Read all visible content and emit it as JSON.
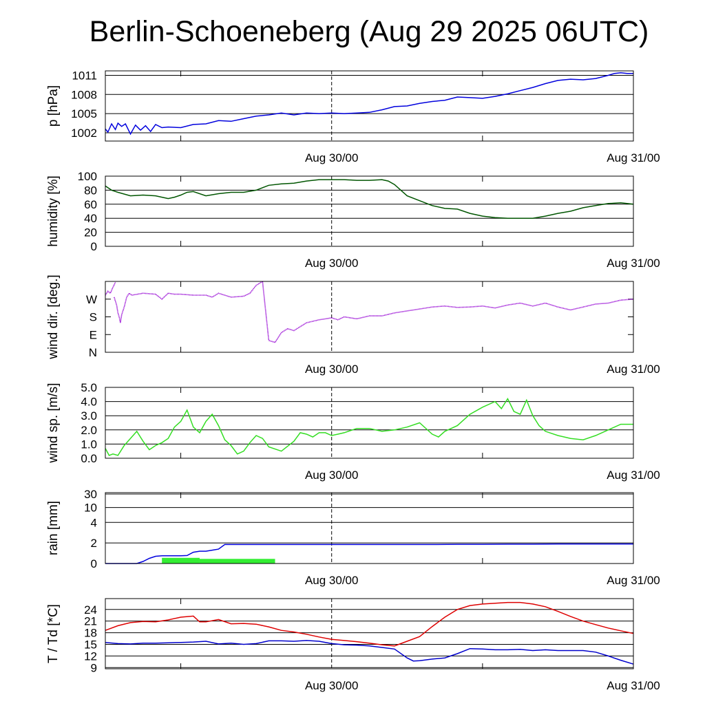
{
  "title": "Berlin-Schoeneberg (Aug 29 2025 06UTC)",
  "x_axis": {
    "ticks": [
      {
        "label": "Aug 30/00",
        "hour": 18
      },
      {
        "label": "Aug 31/00",
        "hour": 42
      }
    ],
    "start": "Aug 29 06UTC",
    "range_hours": [
      0,
      42
    ],
    "minor_tick_hours": [
      6,
      30
    ],
    "marker_hour": 18
  },
  "colors": {
    "pressure": "#0000dd",
    "humidity": "#005500",
    "wind_dir": "#9400d3",
    "wind_speed": "#33dd22",
    "rain_total": "#0000dd",
    "rain_bars": "#33ee33",
    "temperature": "#dd0000",
    "dewpoint": "#0000cc"
  },
  "chart_data": [
    {
      "id": "pressure",
      "type": "line",
      "ylabel": "p [hPa]",
      "ylim": [
        1000.7,
        1011.7
      ],
      "yticks": [
        1002,
        1005,
        1008,
        1011
      ],
      "ytick_labels": [
        "1002",
        "1005",
        "1008",
        "1011"
      ],
      "grid": true,
      "series": [
        {
          "color_key": "pressure",
          "x": [
            0,
            0.2,
            0.5,
            0.8,
            1.0,
            1.3,
            1.6,
            2.0,
            2.4,
            2.8,
            3.2,
            3.6,
            4.0,
            4.5,
            5,
            6,
            7,
            8,
            9,
            10,
            11,
            12,
            13,
            14,
            15,
            16,
            17,
            18,
            19,
            20,
            21,
            22,
            23,
            24,
            25,
            26,
            27,
            28,
            29,
            30,
            31,
            32,
            33,
            34,
            35,
            36,
            37,
            38,
            39,
            40,
            40.5,
            41,
            41.5,
            42
          ],
          "y": [
            1002.6,
            1002.1,
            1003.4,
            1002.5,
            1003.5,
            1003.0,
            1003.4,
            1001.8,
            1003.2,
            1002.4,
            1003.1,
            1002.2,
            1003.3,
            1002.8,
            1002.9,
            1002.8,
            1003.3,
            1003.4,
            1003.9,
            1003.8,
            1004.2,
            1004.6,
            1004.8,
            1005.1,
            1004.8,
            1005.1,
            1005.0,
            1005.1,
            1005.0,
            1005.1,
            1005.2,
            1005.6,
            1006.1,
            1006.2,
            1006.6,
            1006.9,
            1007.1,
            1007.6,
            1007.5,
            1007.4,
            1007.7,
            1008.1,
            1008.6,
            1009.1,
            1009.7,
            1010.2,
            1010.4,
            1010.3,
            1010.5,
            1011.0,
            1011.3,
            1011.4,
            1011.3,
            1011.3
          ]
        }
      ]
    },
    {
      "id": "humidity",
      "type": "line",
      "ylabel": "humidity [%]",
      "ylim": [
        0,
        100
      ],
      "yticks": [
        0,
        20,
        40,
        60,
        80,
        100
      ],
      "ytick_labels": [
        "0",
        "20",
        "40",
        "60",
        "80",
        "100"
      ],
      "grid": true,
      "series": [
        {
          "color_key": "humidity",
          "x": [
            0,
            0.5,
            1,
            2,
            3,
            4,
            4.5,
            5,
            5.5,
            6,
            6.5,
            7,
            8,
            9,
            10,
            11,
            12,
            13,
            14,
            15,
            16,
            17,
            18,
            19,
            20,
            21,
            22,
            22.5,
            23,
            24,
            25,
            26,
            27,
            28,
            29,
            30,
            31,
            32,
            33,
            34,
            35,
            36,
            37,
            38,
            39,
            40,
            41,
            42
          ],
          "y": [
            86,
            80,
            77,
            72,
            73,
            72,
            70,
            68,
            70,
            73,
            77,
            78,
            72,
            75,
            77,
            77,
            80,
            87,
            89,
            90,
            93,
            95,
            95,
            95,
            94,
            94,
            95,
            93,
            88,
            72,
            65,
            58,
            54,
            53,
            47,
            43,
            41,
            40,
            40,
            40,
            43,
            47,
            50,
            55,
            58,
            61,
            62,
            60
          ]
        }
      ]
    },
    {
      "id": "wind_dir",
      "type": "scatter",
      "ylabel": "wind dir. [deg.]",
      "ylim": [
        0,
        360
      ],
      "yticks": [
        0,
        90,
        180,
        270
      ],
      "ytick_labels": [
        "N",
        "E",
        "S",
        "W"
      ],
      "grid": false,
      "series": [
        {
          "color_key": "wind_dir",
          "segments": [
            {
              "x": [
                0,
                0.2,
                0.4,
                0.6,
                0.8
              ],
              "y": [
                290,
                310,
                300,
                330,
                355
              ]
            },
            {
              "x": [
                0.7,
                0.8,
                0.9,
                1.0,
                1.1,
                1.2,
                1.3,
                1.5,
                1.7,
                1.9,
                2.1
              ],
              "y": [
                280,
                260,
                240,
                200,
                180,
                150,
                190,
                230,
                280,
                300,
                290
              ]
            },
            {
              "x": [
                2.1,
                3,
                4,
                4.5,
                5,
                5.5,
                6,
                7,
                8,
                8.5,
                9,
                10,
                11,
                11.5,
                12,
                12.5,
                13,
                13.5,
                14,
                14.5,
                15,
                15.5,
                16,
                17,
                17.5,
                18,
                18.5,
                19,
                20,
                21,
                22,
                23,
                24,
                25,
                26,
                27,
                28,
                29,
                30,
                31,
                32,
                33,
                34,
                35,
                36,
                37,
                38,
                39,
                40,
                41,
                42
              ],
              "y": [
                290,
                300,
                295,
                270,
                300,
                295,
                295,
                290,
                290,
                280,
                300,
                280,
                285,
                300,
                340,
                360,
                60,
                50,
                100,
                120,
                110,
                130,
                150,
                165,
                170,
                175,
                165,
                180,
                170,
                185,
                185,
                200,
                210,
                220,
                230,
                235,
                228,
                230,
                235,
                225,
                240,
                250,
                235,
                250,
                230,
                215,
                230,
                245,
                250,
                265,
                270
              ]
            }
          ],
          "approx_points": "line approximated by connected segments; wraps at 360 deg"
        }
      ]
    },
    {
      "id": "wind_speed",
      "type": "line",
      "ylabel": "wind sp. [m/s]",
      "ylim": [
        0,
        5.0
      ],
      "yticks": [
        0,
        1.0,
        2.0,
        3.0,
        4.0,
        5.0
      ],
      "ytick_labels": [
        "0.0",
        "1.0",
        "2.0",
        "3.0",
        "4.0",
        "5.0"
      ],
      "grid": true,
      "series": [
        {
          "color_key": "wind_speed",
          "x": [
            0,
            0.3,
            0.6,
            1,
            1.5,
            2,
            2.5,
            3,
            3.5,
            4,
            4.5,
            5,
            5.5,
            6,
            6.5,
            7,
            7.5,
            8,
            8.5,
            9,
            9.5,
            10,
            10.5,
            11,
            11.5,
            12,
            12.5,
            13,
            14,
            15,
            15.5,
            16,
            16.5,
            17,
            17.5,
            18,
            18.5,
            19,
            20,
            21,
            22,
            23,
            24,
            25,
            26,
            26.5,
            27,
            28,
            29,
            30,
            31,
            31.5,
            32,
            32.5,
            33,
            33.5,
            34,
            34.5,
            35,
            36,
            37,
            38,
            39,
            40,
            41,
            42
          ],
          "y": [
            0.7,
            0.2,
            0.3,
            0.2,
            0.9,
            1.4,
            1.9,
            1.2,
            0.6,
            0.9,
            1.1,
            1.4,
            2.2,
            2.6,
            3.4,
            2.2,
            1.8,
            2.6,
            3.1,
            2.3,
            1.3,
            0.9,
            0.3,
            0.5,
            1.1,
            1.6,
            1.4,
            0.8,
            0.5,
            1.2,
            1.8,
            1.7,
            1.5,
            1.8,
            1.8,
            1.6,
            1.7,
            1.8,
            2.1,
            2.1,
            1.9,
            2.0,
            2.2,
            2.5,
            1.7,
            1.5,
            1.9,
            2.3,
            3.1,
            3.6,
            4.0,
            3.5,
            4.2,
            3.3,
            3.1,
            4.1,
            3.0,
            2.3,
            1.9,
            1.6,
            1.4,
            1.3,
            1.6,
            2.0,
            2.4,
            2.4
          ]
        }
      ]
    },
    {
      "id": "rain",
      "type": "bar",
      "ylabel": "rain [mm]",
      "yticks": [
        0,
        2,
        4,
        10,
        30
      ],
      "ytick_labels": [
        "0",
        "2",
        "4",
        "10",
        "30"
      ],
      "scale": "nonlinear",
      "grid": true,
      "series": [
        {
          "color_key": "rain_total",
          "kind": "line",
          "x": [
            0,
            2.5,
            3,
            3.5,
            4,
            4.5,
            5,
            5.5,
            6,
            6.5,
            7,
            7.5,
            8,
            8.5,
            9,
            9.5,
            10,
            12,
            14,
            16,
            18,
            20,
            22,
            24,
            26,
            28,
            30,
            32,
            34,
            36,
            38,
            40,
            42
          ],
          "y": [
            0,
            0,
            0.2,
            0.5,
            0.7,
            0.75,
            0.75,
            0.75,
            0.75,
            0.78,
            1.1,
            1.2,
            1.2,
            1.3,
            1.4,
            1.85,
            1.85,
            1.85,
            1.85,
            1.85,
            1.85,
            1.85,
            1.85,
            1.85,
            1.85,
            1.87,
            1.87,
            1.88,
            1.88,
            1.9,
            1.9,
            1.9,
            1.9
          ]
        },
        {
          "color_key": "rain_bars",
          "kind": "bars",
          "bars": [
            {
              "x0": 4.5,
              "x1": 7.5,
              "y": 0.55
            },
            {
              "x0": 7.5,
              "x1": 13.5,
              "y": 0.45
            }
          ]
        }
      ]
    },
    {
      "id": "temperature",
      "type": "line",
      "ylabel": "T / Td [*C]",
      "ylim": [
        8.7,
        26.8
      ],
      "yticks": [
        9,
        12,
        15,
        18,
        21,
        24
      ],
      "ytick_labels": [
        "9",
        "12",
        "15",
        "18",
        "21",
        "24"
      ],
      "grid": true,
      "series": [
        {
          "color_key": "temperature",
          "x": [
            0,
            1,
            2,
            3,
            4,
            5,
            6,
            7,
            7.5,
            8,
            9,
            10,
            11,
            12,
            13,
            14,
            15,
            16,
            17,
            18,
            19,
            20,
            21,
            22,
            23,
            24,
            25,
            26,
            27,
            28,
            29,
            30,
            31,
            32,
            33,
            34,
            35,
            36,
            37,
            38,
            39,
            40,
            41,
            42
          ],
          "y": [
            18.6,
            19.8,
            20.6,
            20.9,
            20.8,
            21.3,
            22.0,
            22.3,
            20.8,
            20.8,
            21.4,
            20.3,
            20.4,
            20.2,
            19.5,
            18.6,
            18.2,
            17.6,
            16.9,
            16.3,
            16.0,
            15.7,
            15.3,
            14.9,
            14.6,
            15.8,
            17.0,
            19.6,
            22.0,
            24.0,
            25.0,
            25.4,
            25.6,
            25.8,
            25.8,
            25.4,
            24.7,
            23.5,
            22.2,
            21.0,
            20.1,
            19.2,
            18.5,
            17.8
          ]
        },
        {
          "color_key": "dewpoint",
          "x": [
            0,
            1,
            2,
            3,
            4,
            5,
            6,
            7,
            8,
            9,
            10,
            11,
            12,
            13,
            14,
            15,
            16,
            17,
            18,
            19,
            20,
            21,
            22,
            23,
            24,
            24.5,
            25,
            26,
            27,
            28,
            29,
            30,
            31,
            32,
            33,
            34,
            35,
            36,
            37,
            38,
            39,
            40,
            41,
            42
          ],
          "y": [
            15.5,
            15.2,
            15.1,
            15.3,
            15.3,
            15.4,
            15.5,
            15.6,
            15.8,
            15.1,
            15.3,
            15.0,
            15.2,
            15.9,
            15.9,
            15.8,
            16.0,
            15.8,
            15.2,
            14.9,
            14.8,
            14.6,
            14.2,
            13.8,
            11.5,
            10.7,
            10.8,
            11.2,
            11.5,
            12.6,
            13.9,
            13.8,
            13.6,
            13.6,
            13.7,
            13.4,
            13.6,
            13.4,
            13.4,
            13.4,
            13.0,
            12.0,
            10.9,
            9.9
          ]
        }
      ]
    }
  ]
}
